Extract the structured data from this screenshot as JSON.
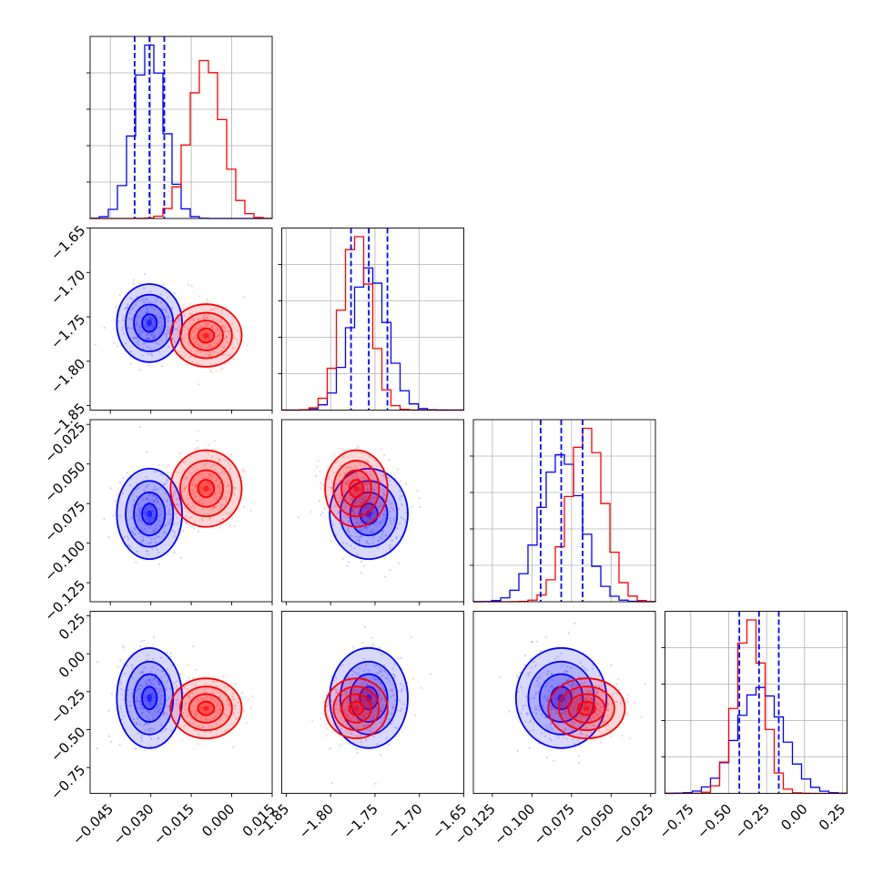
{
  "colors": {
    "series_a": "#0000ff",
    "series_b": "#ff0000",
    "grid": "#b0b0b0",
    "axis": "#000000"
  },
  "chart_data": {
    "type": "corner",
    "grid": true,
    "parameters": [
      {
        "range": [
          -0.0525,
          0.015
        ],
        "ticks": [
          -0.045,
          -0.03,
          -0.015,
          0.0,
          0.015
        ],
        "tick_labels": [
          "−0.045",
          "−0.030",
          "−0.015",
          "0.000",
          "0.015"
        ]
      },
      {
        "range": [
          -1.855,
          -1.65
        ],
        "ticks": [
          -1.85,
          -1.8,
          -1.75,
          -1.7,
          -1.65
        ],
        "tick_labels": [
          "−1.85",
          "−1.80",
          "−1.75",
          "−1.70",
          "−1.65"
        ]
      },
      {
        "range": [
          -0.137,
          -0.022
        ],
        "ticks": [
          -0.125,
          -0.1,
          -0.075,
          -0.05,
          -0.025
        ],
        "tick_labels": [
          "−0.125",
          "−0.100",
          "−0.075",
          "−0.050",
          "−0.025"
        ]
      },
      {
        "range": [
          -0.92,
          0.28
        ],
        "ticks": [
          -0.75,
          -0.5,
          -0.25,
          0.0,
          0.25
        ],
        "tick_labels": [
          "−0.75",
          "−0.50",
          "−0.25",
          "0.00",
          "0.25"
        ]
      }
    ],
    "series": [
      {
        "color": "#0000ff",
        "means": [
          -0.0305,
          -1.757,
          -0.0815,
          -0.292
        ],
        "sds": [
          0.0055,
          0.02,
          0.013,
          0.15
        ],
        "quantiles": [
          [
            -0.036,
            -0.0305,
            -0.025
          ],
          [
            -1.777,
            -1.757,
            -1.736
          ],
          [
            -0.0945,
            -0.0815,
            -0.068
          ],
          [
            -0.43,
            -0.3,
            -0.17
          ]
        ]
      },
      {
        "color": "#ff0000",
        "means": [
          -0.0095,
          -1.771,
          -0.0655,
          -0.36
        ],
        "sds": [
          0.006,
          0.016,
          0.011,
          0.09
        ]
      }
    ],
    "quantile_series": "#0000ff"
  }
}
